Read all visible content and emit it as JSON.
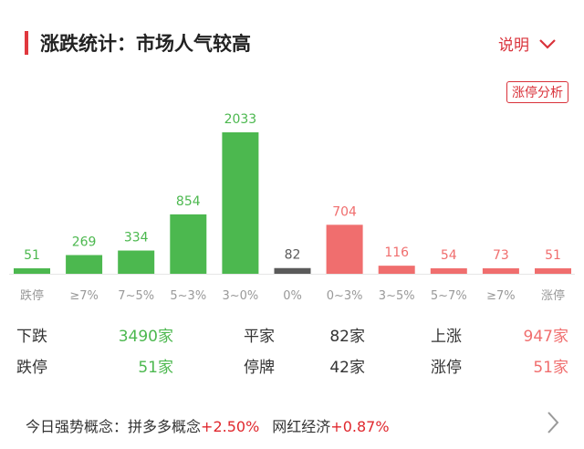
{
  "header": {
    "title": "涨跌统计：市场人气较高",
    "explain_label": "说明",
    "limit_analysis_label": "涨停分析"
  },
  "colors": {
    "down": "#4cb84f",
    "flat": "#5a5a5a",
    "up": "#f06e6e",
    "accent": "#d9323a"
  },
  "chart_data": {
    "type": "bar",
    "categories": [
      "跌停",
      "≥7%",
      "7~5%",
      "5~3%",
      "3~0%",
      "0%",
      "0~3%",
      "3~5%",
      "5~7%",
      "≥7%",
      "涨停"
    ],
    "values": [
      51,
      269,
      334,
      854,
      2033,
      82,
      704,
      116,
      54,
      73,
      51
    ],
    "groups": [
      "down",
      "down",
      "down",
      "down",
      "down",
      "flat",
      "up",
      "up",
      "up",
      "up",
      "up"
    ]
  },
  "stats": [
    {
      "label": "下跌",
      "value": "3490家",
      "color": "down"
    },
    {
      "label": "平家",
      "value": "82家",
      "color": "flat"
    },
    {
      "label": "上涨",
      "value": "947家",
      "color": "up"
    },
    {
      "label": "跌停",
      "value": "51家",
      "color": "down"
    },
    {
      "label": "停牌",
      "value": "42家",
      "color": "flat"
    },
    {
      "label": "涨停",
      "value": "51家",
      "color": "up"
    }
  ],
  "concepts": {
    "prefix": "今日强势概念：",
    "items": [
      {
        "name": "拼多多概念",
        "change": "+2.50%"
      },
      {
        "name": "网红经济",
        "change": "+0.87%"
      }
    ]
  }
}
